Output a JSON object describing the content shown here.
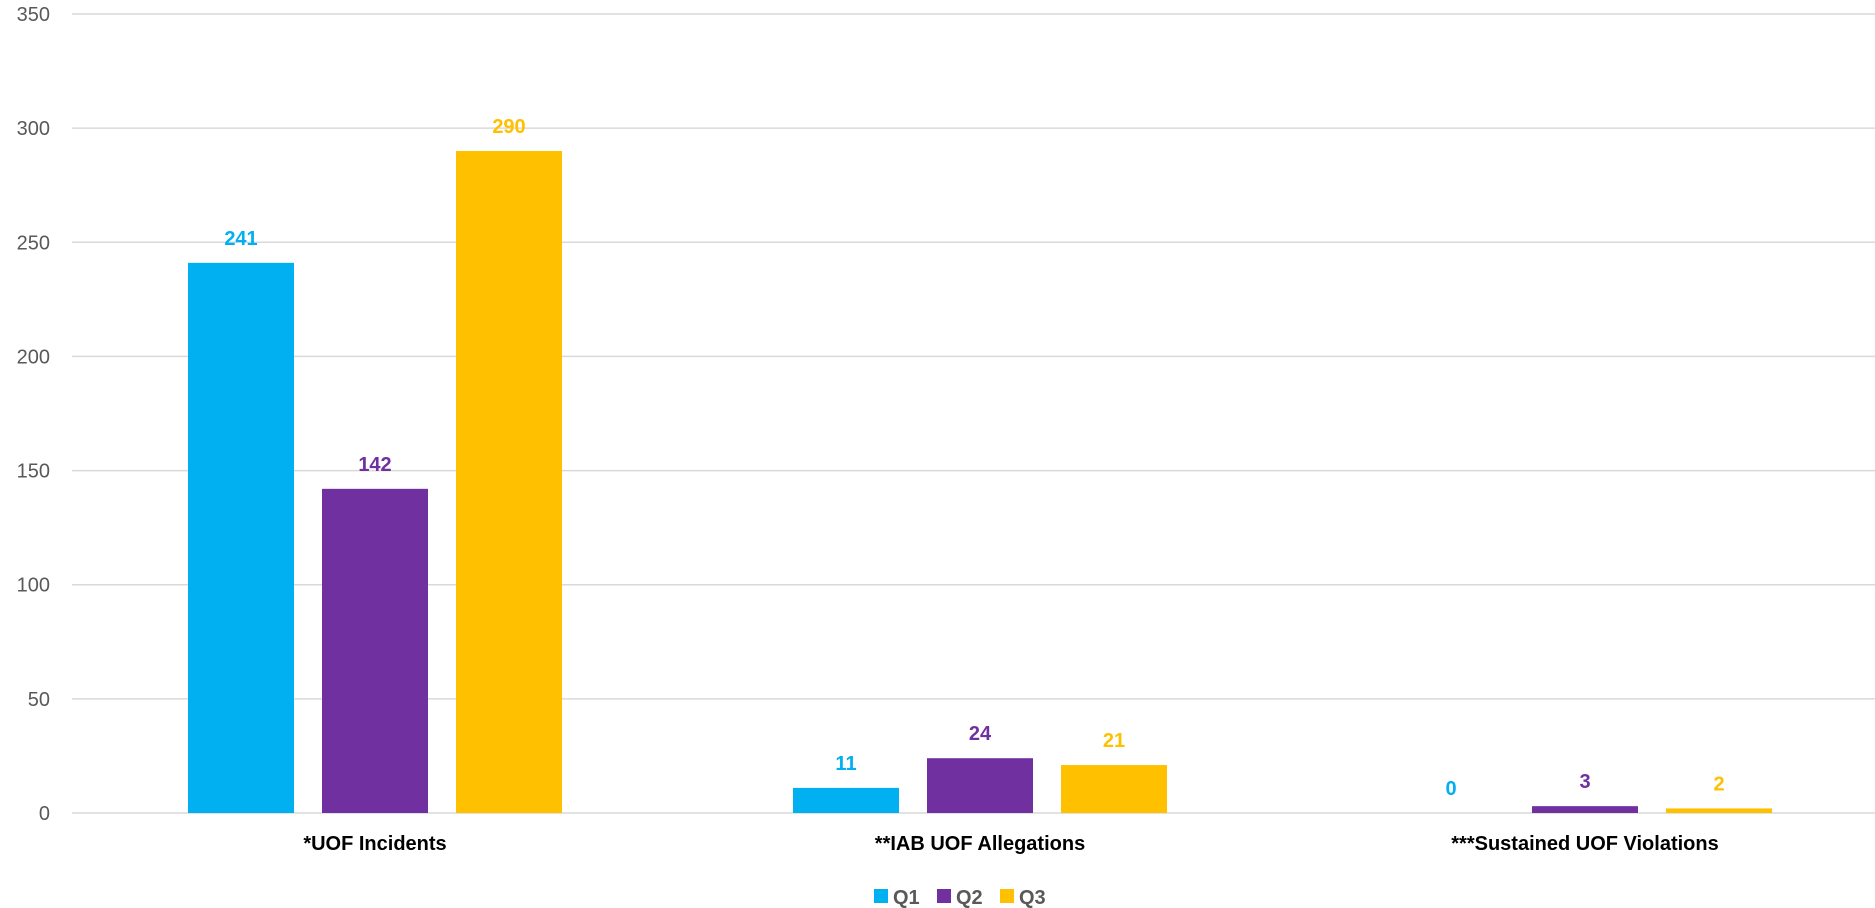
{
  "chart_data": {
    "type": "bar",
    "categories": [
      "*UOF Incidents",
      "**IAB UOF Allegations",
      "***Sustained UOF Violations"
    ],
    "series": [
      {
        "name": "Q1",
        "values": [
          241,
          11,
          0
        ],
        "color": "#00B0F0"
      },
      {
        "name": "Q2",
        "values": [
          142,
          24,
          3
        ],
        "color": "#7030A0"
      },
      {
        "name": "Q3",
        "values": [
          290,
          21,
          2
        ],
        "color": "#FFC000"
      }
    ],
    "ylim": [
      0,
      350
    ],
    "yticks": [
      0,
      50,
      100,
      150,
      200,
      250,
      300,
      350
    ],
    "grid": true,
    "legend": "bottom",
    "data_labels": true,
    "colors": {
      "gridline": "#D9D9D9",
      "tick_text": "#595959",
      "category_text": "#000000",
      "legend_text": "#595959"
    }
  }
}
